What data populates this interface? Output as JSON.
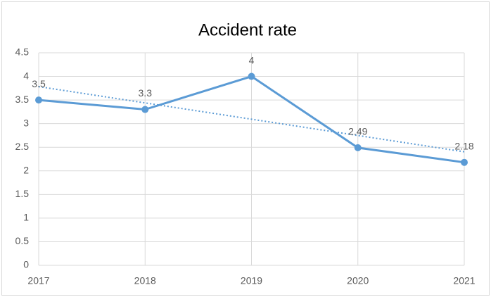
{
  "chart_data": {
    "type": "line",
    "title": "Accident rate",
    "categories": [
      "2017",
      "2018",
      "2019",
      "2020",
      "2021"
    ],
    "series": [
      {
        "name": "Accident rate",
        "color": "#5b9bd5",
        "values": [
          3.5,
          3.3,
          4,
          2.49,
          2.18
        ]
      }
    ],
    "ylim": [
      0,
      4.5
    ],
    "yticks": [
      0,
      0.5,
      1,
      1.5,
      2,
      2.5,
      3,
      3.5,
      4,
      4.5
    ],
    "grid": true,
    "data_labels": true,
    "trendline": "linear"
  }
}
